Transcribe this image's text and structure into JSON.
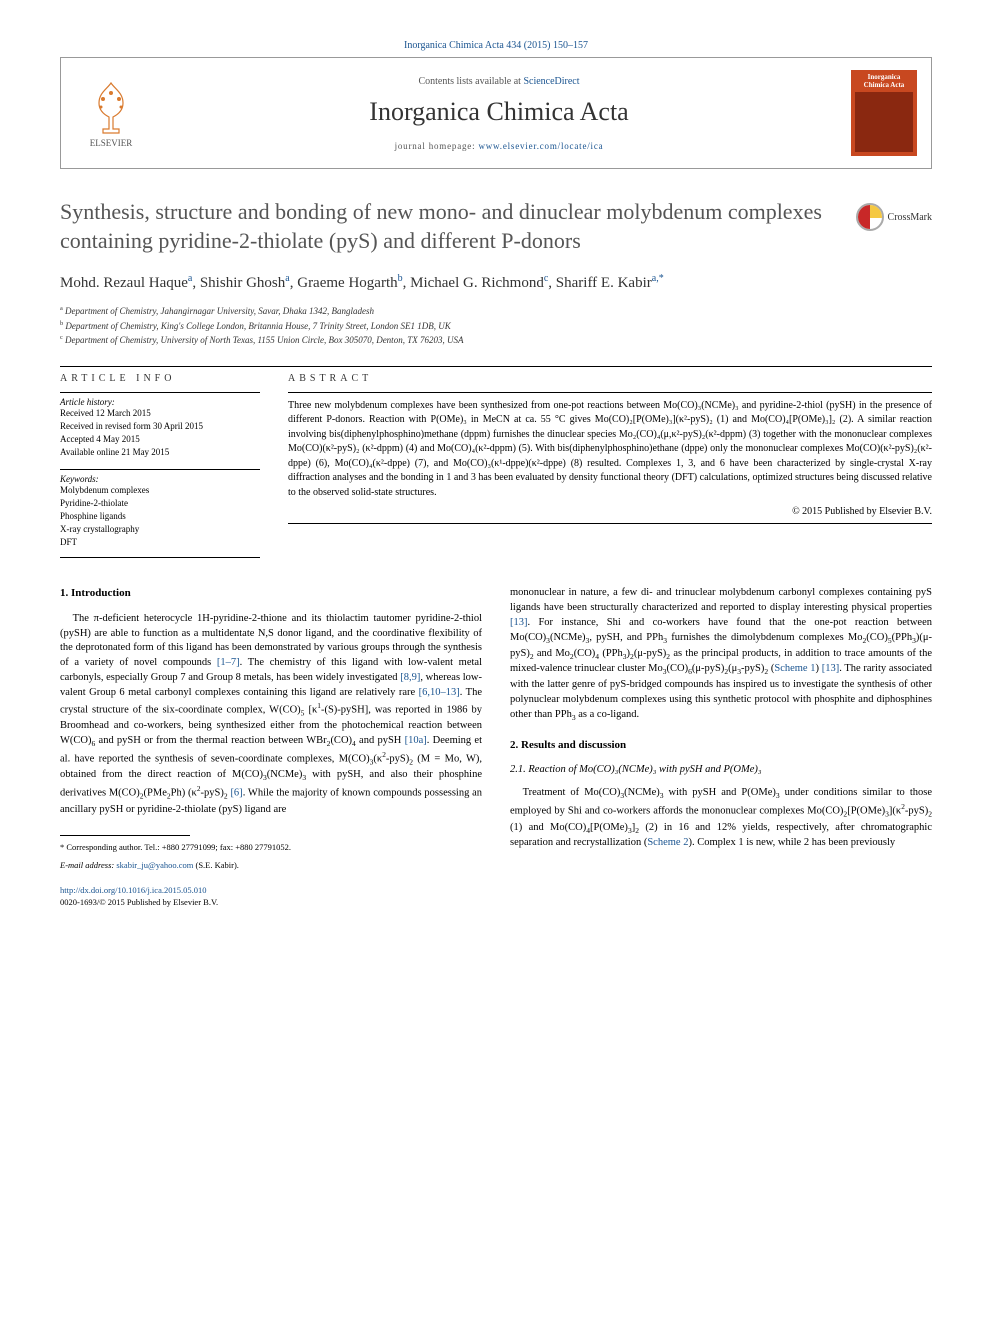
{
  "citation": "Inorganica Chimica Acta 434 (2015) 150–157",
  "header": {
    "contents_prefix": "Contents lists available at ",
    "sciencedirect": "ScienceDirect",
    "journal_name": "Inorganica Chimica Acta",
    "homepage_prefix": "journal homepage: ",
    "homepage_url": "www.elsevier.com/locate/ica",
    "elsevier": "ELSEVIER",
    "cover_title": "Inorganica Chimica Acta"
  },
  "crossmark": "CrossMark",
  "article": {
    "title": "Synthesis, structure and bonding of new mono- and dinuclear molybdenum complexes containing pyridine-2-thiolate (pyS) and different P-donors",
    "authors_html": "Mohd. Rezaul Haque<sup>a</sup>, Shishir Ghosh<sup>a</sup>, Graeme Hogarth<sup>b</sup>, Michael G. Richmond<sup>c</sup>, Shariff E. Kabir<sup>a,*</sup>",
    "affiliations": [
      {
        "sup": "a",
        "text": "Department of Chemistry, Jahangirnagar University, Savar, Dhaka 1342, Bangladesh"
      },
      {
        "sup": "b",
        "text": "Department of Chemistry, King's College London, Britannia House, 7 Trinity Street, London SE1 1DB, UK"
      },
      {
        "sup": "c",
        "text": "Department of Chemistry, University of North Texas, 1155 Union Circle, Box 305070, Denton, TX 76203, USA"
      }
    ]
  },
  "meta": {
    "info_label": "ARTICLE INFO",
    "abstract_label": "ABSTRACT",
    "history_label": "Article history:",
    "history": [
      "Received 12 March 2015",
      "Received in revised form 30 April 2015",
      "Accepted 4 May 2015",
      "Available online 21 May 2015"
    ],
    "keywords_label": "Keywords:",
    "keywords": [
      "Molybdenum complexes",
      "Pyridine-2-thiolate",
      "Phosphine ligands",
      "X-ray crystallography",
      "DFT"
    ],
    "abstract": "Three new molybdenum complexes have been synthesized from one-pot reactions between Mo(CO)₃(NCMe)₃ and pyridine-2-thiol (pySH) in the presence of different P-donors. Reaction with P(OMe)₃ in MeCN at ca. 55 °C gives Mo(CO)₂[P(OMe)₃](κ²-pyS)₂ (1) and Mo(CO)₄[P(OMe)₃]₂ (2). A similar reaction involving bis(diphenylphosphino)methane (dppm) furnishes the dinuclear species Mo₂(CO)₄(μ,κ²-pyS)₂(κ²-dppm) (3) together with the mononuclear complexes Mo(CO)(κ²-pyS)₂ (κ²-dppm) (4) and Mo(CO)₄(κ²-dppm) (5). With bis(diphenylphosphino)ethane (dppe) only the mononuclear complexes Mo(CO)(κ²-pyS)₂(κ²-dppe) (6), Mo(CO)₄(κ²-dppe) (7), and Mo(CO)₃(κ¹-dppe)(κ²-dppe) (8) resulted. Complexes 1, 3, and 6 have been characterized by single-crystal X-ray diffraction analyses and the bonding in 1 and 3 has been evaluated by density functional theory (DFT) calculations, optimized structures being discussed relative to the observed solid-state structures.",
    "copyright": "© 2015 Published by Elsevier B.V."
  },
  "body": {
    "intro_heading": "1. Introduction",
    "intro_p1": "The π-deficient heterocycle 1H-pyridine-2-thione and its thiolactim tautomer pyridine-2-thiol (pySH) are able to function as a multidentate N,S donor ligand, and the coordinative flexibility of the deprotonated form of this ligand has been demonstrated by various groups through the synthesis of a variety of novel compounds [1–7]. The chemistry of this ligand with low-valent metal carbonyls, especially Group 7 and Group 8 metals, has been widely investigated [8,9], whereas low-valent Group 6 metal carbonyl complexes containing this ligand are relatively rare [6,10–13]. The crystal structure of the six-coordinate complex, W(CO)₅ [κ¹-(S)-pySH], was reported in 1986 by Broomhead and co-workers, being synthesized either from the photochemical reaction between W(CO)₆ and pySH or from the thermal reaction between WBr₂(CO)₄ and pySH [10a]. Deeming et al. have reported the synthesis of seven-coordinate complexes, M(CO)₃(κ²-pyS)₂ (M = Mo, W), obtained from the direct reaction of M(CO)₃(NCMe)₃ with pySH, and also their phosphine derivatives M(CO)₂(PMe₂Ph) (κ²-pyS)₂ [6]. While the majority of known compounds possessing an ancillary pySH or pyridine-2-thiolate (pyS) ligand are",
    "intro_p2": "mononuclear in nature, a few di- and trinuclear molybdenum carbonyl complexes containing pyS ligands have been structurally characterized and reported to display interesting physical properties [13]. For instance, Shi and co-workers have found that the one-pot reaction between Mo(CO)₃(NCMe)₃, pySH, and PPh₃ furnishes the dimolybdenum complexes Mo₂(CO)₅(PPh₃)(μ-pyS)₂ and Mo₂(CO)₄ (PPh₃)₂(μ-pyS)₂ as the principal products, in addition to trace amounts of the mixed-valence trinuclear cluster Mo₃(CO)₆(μ-pyS)₂(μ₃-pyS)₂ (Scheme 1) [13]. The rarity associated with the latter genre of pyS-bridged compounds has inspired us to investigate the synthesis of other polynuclear molybdenum complexes using this synthetic protocol with phosphite and diphosphines other than PPh₃ as a co-ligand.",
    "results_heading": "2. Results and discussion",
    "sub21_heading": "2.1. Reaction of Mo(CO)₃(NCMe)₃ with pySH and P(OMe)₃",
    "results_p1": "Treatment of Mo(CO)₃(NCMe)₃ with pySH and P(OMe)₃ under conditions similar to those employed by Shi and co-workers affords the mononuclear complexes Mo(CO)₂[P(OMe)₃](κ²-pyS)₂ (1) and Mo(CO)₄[P(OMe)₃]₂ (2) in 16 and 12% yields, respectively, after chromatographic separation and recrystallization (Scheme 2). Complex 1 is new, while 2 has been previously"
  },
  "footer": {
    "corr_line1": "* Corresponding author. Tel.: +880 27791099; fax: +880 27791052.",
    "corr_line2_prefix": "E-mail address: ",
    "corr_email": "skabir_ju@yahoo.com",
    "corr_line2_suffix": " (S.E. Kabir).",
    "doi": "http://dx.doi.org/10.1016/j.ica.2015.05.010",
    "issn_line": "0020-1693/© 2015 Published by Elsevier B.V."
  },
  "colors": {
    "link": "#1a5490",
    "cover": "#c84820",
    "title_gray": "#555555"
  }
}
